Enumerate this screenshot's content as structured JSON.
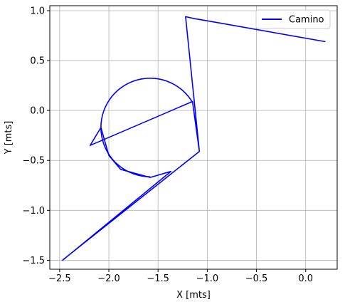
{
  "chart_data": {
    "type": "line",
    "title": "",
    "xlabel": "X [mts]",
    "ylabel": "Y [mts]",
    "xlim": [
      -2.6,
      0.32
    ],
    "ylim": [
      -1.59,
      1.05
    ],
    "grid": true,
    "legend_position": "top-right",
    "x_ticks": [
      -2.5,
      -2.0,
      -1.5,
      -1.0,
      -0.5,
      0.0
    ],
    "x_tick_labels": [
      "−2.5",
      "−2.0",
      "−1.5",
      "−1.0",
      "−0.5",
      "0.0"
    ],
    "y_ticks": [
      1.0,
      0.5,
      0.0,
      -0.5,
      -1.0,
      -1.5
    ],
    "y_tick_labels": [
      "1.0",
      "0.5",
      "0.0",
      "−0.5",
      "−1.0",
      "−1.5"
    ],
    "series": [
      {
        "name": "Camino",
        "color": "#0000ff",
        "points": [
          [
            0.2,
            0.69
          ],
          [
            -0.95,
            0.89
          ],
          [
            -1.07,
            0.91
          ],
          [
            -1.13,
            0.92
          ],
          [
            -1.22,
            0.94
          ],
          [
            -1.08,
            -0.41
          ],
          [
            -1.15,
            0.09
          ],
          [
            -2.19,
            -0.35
          ],
          [
            -2.08,
            -0.17
          ],
          [
            -2.0,
            -0.45
          ],
          [
            -1.88,
            -0.59
          ],
          [
            -1.58,
            -0.67
          ],
          [
            -1.37,
            -0.61
          ],
          [
            -2.47,
            -1.5
          ],
          [
            -2.46,
            -1.49
          ],
          [
            -1.08,
            -0.41
          ]
        ],
        "arc": {
          "cx": -1.58,
          "cy": -0.17,
          "r": 0.5,
          "start_deg": 30,
          "end_deg": 270
        }
      }
    ]
  }
}
